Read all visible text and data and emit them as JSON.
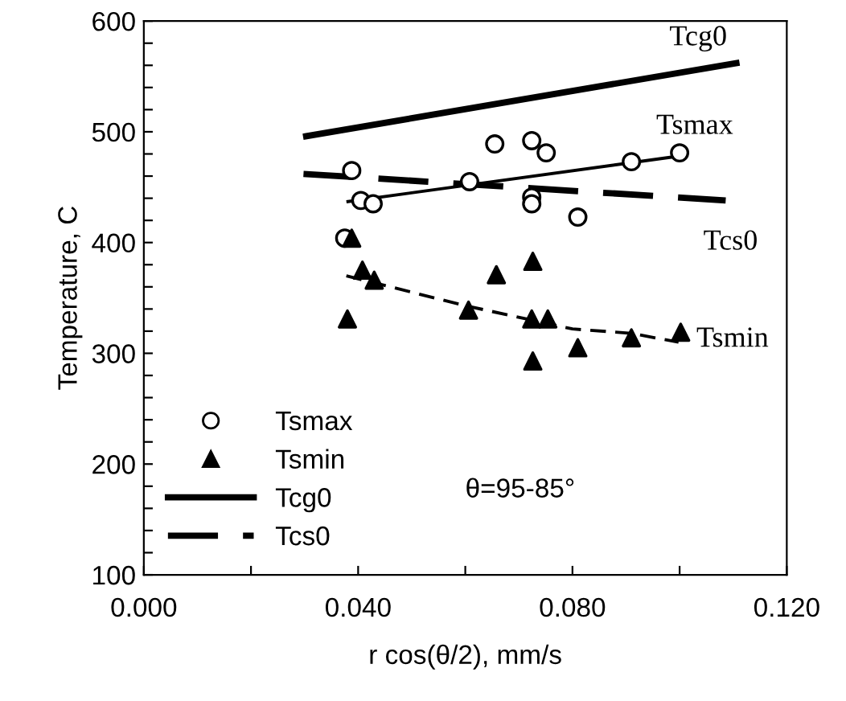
{
  "chart_data": {
    "type": "scatter",
    "xlabel": "r cos(θ/2), mm/s",
    "ylabel": "Temperature, C",
    "xlim": [
      0.0,
      0.12
    ],
    "ylim": [
      100,
      600
    ],
    "xticks": [
      {
        "value": 0.0,
        "label": "0.000"
      },
      {
        "value": 0.02,
        "label": null
      },
      {
        "value": 0.04,
        "label": "0.040"
      },
      {
        "value": 0.06,
        "label": null
      },
      {
        "value": 0.08,
        "label": "0.080"
      },
      {
        "value": 0.1,
        "label": null
      },
      {
        "value": 0.12,
        "label": "0.120"
      }
    ],
    "yticks": [
      100,
      {
        "value": 120,
        "label": null
      },
      {
        "value": 140,
        "label": null
      },
      {
        "value": 160,
        "label": null
      },
      {
        "value": 180,
        "label": null
      },
      200,
      {
        "value": 220,
        "label": null
      },
      {
        "value": 240,
        "label": null
      },
      {
        "value": 260,
        "label": null
      },
      {
        "value": 280,
        "label": null
      },
      300,
      {
        "value": 320,
        "label": null
      },
      {
        "value": 340,
        "label": null
      },
      {
        "value": 360,
        "label": null
      },
      {
        "value": 380,
        "label": null
      },
      400,
      {
        "value": 420,
        "label": null
      },
      {
        "value": 440,
        "label": null
      },
      {
        "value": 460,
        "label": null
      },
      {
        "value": 480,
        "label": null
      },
      500,
      {
        "value": 520,
        "label": null
      },
      {
        "value": 540,
        "label": null
      },
      {
        "value": 560,
        "label": null
      },
      {
        "value": 580,
        "label": null
      },
      600
    ],
    "grid": false,
    "legend": "bottom left",
    "series": [
      {
        "name": "Tsmax",
        "marker": "circle",
        "color": "#000000",
        "x": [
          0.0388,
          0.0405,
          0.0428,
          0.0375,
          0.0608,
          0.0655,
          0.0724,
          0.0751,
          0.0724,
          0.0724,
          0.081,
          0.091,
          0.1
        ],
        "values": [
          465,
          438,
          435,
          404,
          455,
          489,
          492,
          481,
          441,
          435,
          423,
          473,
          481
        ]
      },
      {
        "name": "Tsmin",
        "marker": "triangle",
        "color": "#000000",
        "x": [
          0.0388,
          0.038,
          0.0408,
          0.043,
          0.0606,
          0.0658,
          0.0726,
          0.0724,
          0.0754,
          0.0726,
          0.081,
          0.091,
          0.1002
        ],
        "values": [
          404,
          331,
          375,
          366,
          339,
          371,
          383,
          331,
          331,
          293,
          305,
          314,
          319
        ]
      },
      {
        "name": "Tcg0",
        "type": "line",
        "line_style": "solid",
        "color": "#000000",
        "x": [
          0.0303,
          0.1106
        ],
        "values": [
          496,
          562
        ]
      },
      {
        "name": "Tcs0",
        "type": "line",
        "line_style": "dashed",
        "color": "#000000",
        "x": [
          0.0298,
          0.1086
        ],
        "values": [
          462,
          438
        ]
      },
      {
        "type": "line",
        "line_style": "solid",
        "color": "#000000",
        "x": [
          0.0381,
          0.0998
        ],
        "values": [
          437,
          478
        ]
      },
      {
        "type": "line",
        "line_style": "dashed",
        "color": "#000000",
        "x": [
          0.0378,
          0.06,
          0.08,
          0.091,
          0.0998
        ],
        "values": [
          370,
          343,
          322,
          318,
          310
        ]
      }
    ],
    "annotations": [
      {
        "text": "Tcg0",
        "x": 0.1106,
        "y": 562
      },
      {
        "text": "Tsmax",
        "x": 0.0998,
        "y": 478
      },
      {
        "text": "Tcs0",
        "x": 0.1086,
        "y": 438
      },
      {
        "text": "Tsmin",
        "x": 0.0998,
        "y": 310
      },
      "θ=95-85°"
    ]
  }
}
